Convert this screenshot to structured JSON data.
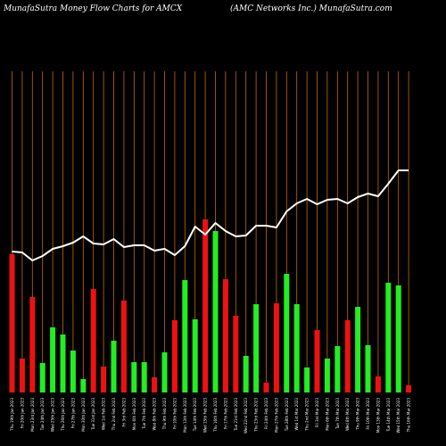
{
  "header": {
    "title_left": "MunafaSutra  Money Flow  Charts for AMCX",
    "title_right": "(AMC Networks Inc.) MunafaSutra.com"
  },
  "colors": {
    "background": "#000000",
    "grid": "#c46a0f",
    "up_bar": "#22ee22",
    "down_bar": "#ee1111",
    "line": "#ffffff"
  },
  "chart_data": {
    "type": "bar",
    "title": "MunafaSutra  Money Flow  Charts for AMCX",
    "subtitle": "(AMC Networks Inc.) MunafaSutra.com",
    "ylim": [
      0,
      360
    ],
    "grid": "vertical",
    "categories": [
      "Thu 19th Jan 2023",
      "Fri 20th Jan 2023",
      "Mon 23rd Jan 2023",
      "Tue 24th Jan 2023",
      "Wed 25th Jan 2023",
      "Thu 26th Jan 2023",
      "Fri 27th Jan 2023",
      "Mon 30th Jan 2023",
      "Tue 31st Jan 2023",
      "Wed 1st Feb 2023",
      "Thu 2nd Feb 2023",
      "Fri 3rd Feb 2023",
      "Mon 6th Feb 2023",
      "Tue 7th Feb 2023",
      "Wed 8th Feb 2023",
      "Thu 9th Feb 2023",
      "Fri 10th Feb 2023",
      "Mon 13th Feb 2023",
      "Tue 14th Feb 2023",
      "Wed 15th Feb 2023",
      "Thu 16th Feb 2023",
      "Fri 17th Feb 2023",
      "Tue 21st Feb 2023",
      "Wed 22nd Feb 2023",
      "Thu 23rd Feb 2023",
      "Fri 24th Feb 2023",
      "Mon 27th Feb 2023",
      "Tue 28th Feb 2023",
      "Wed 1st Mar 2023",
      "Thu 2nd Mar 2023",
      "Fri 3rd Mar 2023",
      "Mon 6th Mar 2023",
      "Tue 7th Mar 2023",
      "Wed 8th Mar 2023",
      "Thu 9th Mar 2023",
      "Fri 10th Mar 2023",
      "Mon 13th Mar 2023",
      "Tue 14th Mar 2023",
      "Wed 15th Mar 2023",
      "Thu 16th Mar 2023"
    ],
    "series": [
      {
        "type": "bar",
        "values": [
          155,
          38,
          107,
          33,
          73,
          65,
          47,
          15,
          116,
          29,
          58,
          103,
          34,
          34,
          17,
          45,
          81,
          126,
          82,
          194,
          181,
          127,
          86,
          41,
          99,
          11,
          100,
          133,
          99,
          28,
          70,
          38,
          52,
          81,
          96,
          53,
          18,
          123,
          120,
          8
        ],
        "direction": [
          "down",
          "down",
          "down",
          "up",
          "up",
          "up",
          "up",
          "up",
          "down",
          "down",
          "up",
          "down",
          "up",
          "up",
          "down",
          "up",
          "down",
          "up",
          "up",
          "down",
          "up",
          "down",
          "down",
          "up",
          "up",
          "down",
          "down",
          "up",
          "up",
          "up",
          "down",
          "up",
          "up",
          "down",
          "up",
          "up",
          "down",
          "up",
          "up",
          "down"
        ]
      },
      {
        "type": "line",
        "values": [
          158,
          157,
          148,
          153,
          161,
          164,
          168,
          175,
          167,
          166,
          172,
          163,
          165,
          165,
          159,
          161,
          154,
          164,
          186,
          177,
          190,
          181,
          175,
          176,
          187,
          187,
          185,
          203,
          212,
          217,
          211,
          216,
          217,
          212,
          219,
          223,
          220,
          234,
          249,
          249
        ]
      }
    ]
  }
}
